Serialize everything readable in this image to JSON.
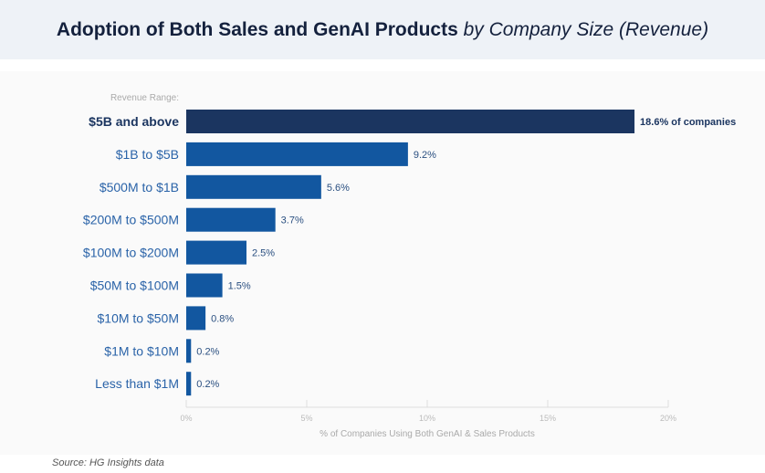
{
  "title": {
    "main": "Adoption of Both Sales and GenAI Products",
    "italic": "by Company Size (Revenue)"
  },
  "source": "Source: HG Insights data",
  "colors": {
    "highlight": "#1b3560",
    "bar": "#1257a0",
    "label_highlight": "#1b3560",
    "label": "#2a63a8"
  },
  "chart_data": {
    "type": "bar",
    "orientation": "horizontal",
    "y_header": "Revenue Range:",
    "categories": [
      "$5B and above",
      "$1B to $5B",
      "$500M to $1B",
      "$200M to $500M",
      "$100M to $200M",
      "$50M to $100M",
      "$10M to $50M",
      "$1M to $10M",
      "Less than $1M"
    ],
    "values": [
      18.6,
      9.2,
      5.6,
      3.7,
      2.5,
      1.5,
      0.8,
      0.2,
      0.2
    ],
    "data_labels": [
      "18.6% of companies",
      "9.2%",
      "5.6%",
      "3.7%",
      "2.5%",
      "1.5%",
      "0.8%",
      "0.2%",
      "0.2%"
    ],
    "xlabel": "% of Companies Using Both GenAI & Sales Products",
    "xlim": [
      0,
      20
    ],
    "xticks": [
      "0%",
      "5%",
      "10%",
      "15%",
      "20%"
    ],
    "grid": false
  }
}
